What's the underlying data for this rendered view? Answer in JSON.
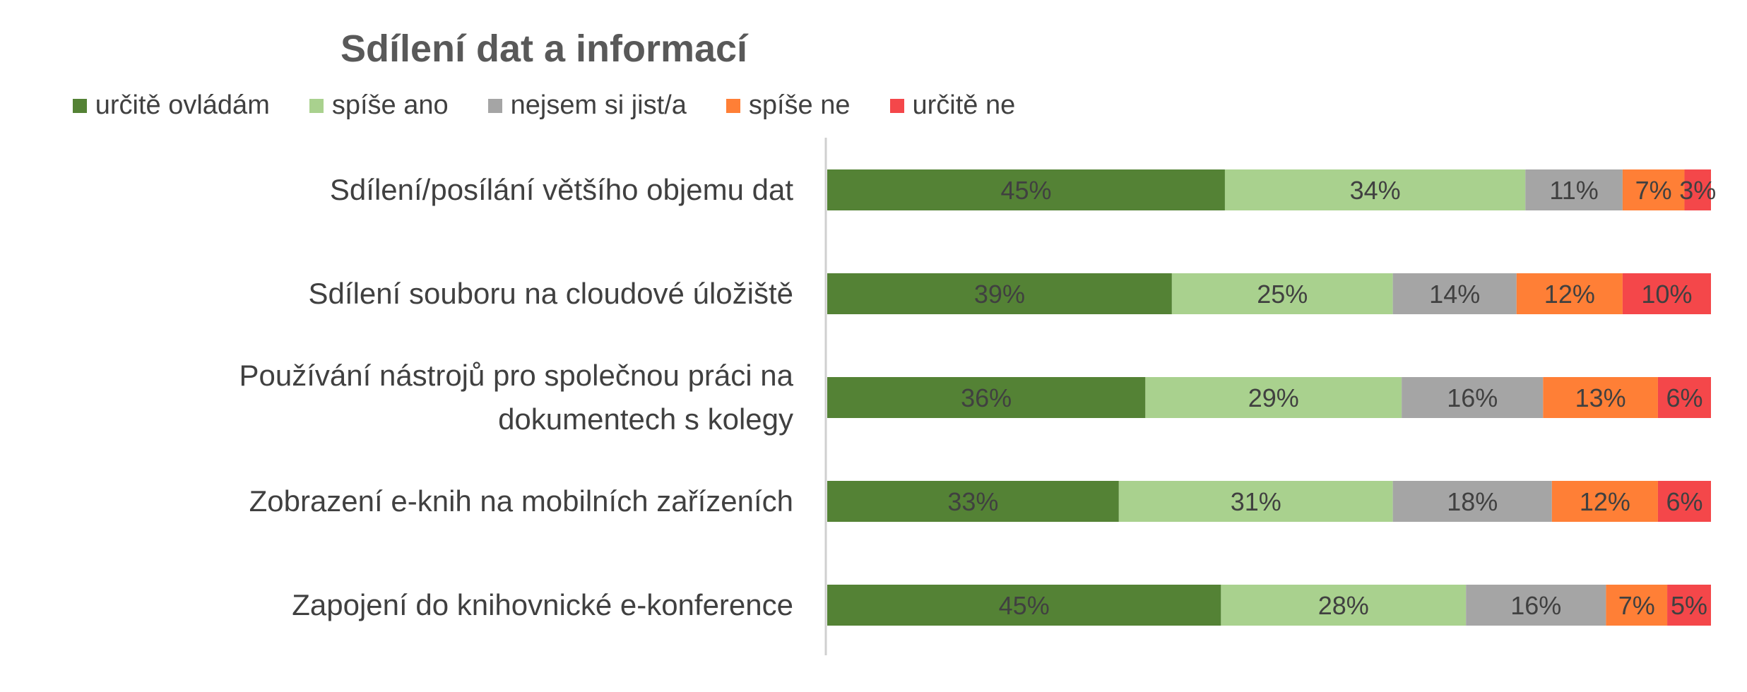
{
  "chart_data": {
    "type": "bar",
    "orientation": "horizontal",
    "stacked": "100%",
    "title": "Sdílení dat a informací",
    "legend_position": "top",
    "categories": [
      "Sdílení/posílání většího objemu dat",
      "Sdílení souboru na cloudové úložiště",
      "Používání nástrojů pro společnou práci na dokumentech s kolegy",
      "Zobrazení e-knih na mobilních zařízeních",
      "Zapojení do knihovnické e-konference"
    ],
    "category_lines": [
      [
        "Sdílení/posílání většího objemu dat"
      ],
      [
        "Sdílení souboru na cloudové úložiště"
      ],
      [
        "Používání nástrojů pro společnou práci na",
        "dokumentech s kolegy"
      ],
      [
        "Zobrazení e-knih na mobilních zařízeních"
      ],
      [
        "Zapojení do knihovnické e-konference"
      ]
    ],
    "series": [
      {
        "name": "určitě ovládám",
        "color": "#548235",
        "values": [
          45,
          39,
          36,
          33,
          45
        ]
      },
      {
        "name": "spíše ano",
        "color": "#a9d18e",
        "values": [
          34,
          25,
          29,
          31,
          28
        ]
      },
      {
        "name": "nejsem si jist/a",
        "color": "#a5a5a5",
        "values": [
          11,
          14,
          16,
          18,
          16
        ]
      },
      {
        "name": "spíše ne",
        "color": "#ff7f36",
        "values": [
          7,
          12,
          13,
          12,
          7
        ]
      },
      {
        "name": "určitě ne",
        "color": "#f4474a",
        "values": [
          3,
          10,
          6,
          6,
          5
        ]
      }
    ],
    "value_suffix": "%",
    "grid": false
  }
}
